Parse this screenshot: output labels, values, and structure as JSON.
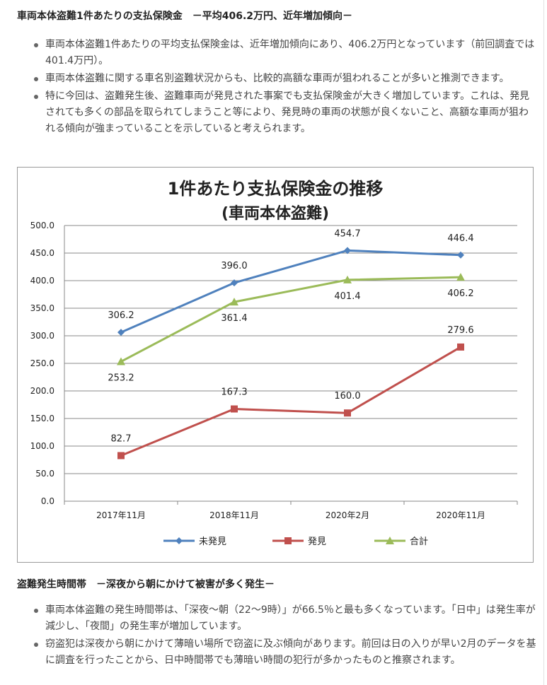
{
  "section1": {
    "heading": "車両本体盗難1件あたりの支払保険金　－平均406.2万円、近年増加傾向－",
    "bullets": [
      "車両本体盗難1件あたりの平均支払保険金は、近年増加傾向にあり、406.2万円となっています（前回調査では401.4万円）。",
      "車両本体盗難に関する車名別盗難状況からも、比較的高額な車両が狙われることが多いと推測できます。",
      "特に今回は、盗難発生後、盗難車両が発見された事案でも支払保険金が大きく増加しています。これは、発見されても多くの部品を取られてしまうこと等により、発見時の車両の状態が良くないこと、高額な車両が狙われる傾向が強まっていることを示していると考えられます。"
    ]
  },
  "chart_data": {
    "type": "line",
    "title": "1件あたり支払保険金の推移",
    "subtitle": "(車両本体盗難)",
    "categories": [
      "2017年11月",
      "2018年11月",
      "2020年2月",
      "2020年11月"
    ],
    "yticks": [
      "0.0",
      "50.0",
      "100.0",
      "150.0",
      "200.0",
      "250.0",
      "300.0",
      "350.0",
      "400.0",
      "450.0",
      "500.0"
    ],
    "ylim": [
      0,
      500
    ],
    "grid": true,
    "legend_position": "bottom",
    "series": [
      {
        "name": "未発見",
        "color": "#4f81bd",
        "marker": "diamond",
        "values": [
          306.2,
          396.0,
          454.7,
          446.4
        ],
        "labels": [
          "306.2",
          "396.0",
          "454.7",
          "446.4"
        ],
        "label_pos": [
          "above",
          "above",
          "above",
          "above"
        ]
      },
      {
        "name": "発見",
        "color": "#c0504d",
        "marker": "square",
        "values": [
          82.7,
          167.3,
          160.0,
          279.6
        ],
        "labels": [
          "82.7",
          "167.3",
          "160.0",
          "279.6"
        ],
        "label_pos": [
          "above",
          "above",
          "above",
          "above"
        ]
      },
      {
        "name": "合計",
        "color": "#9bbb59",
        "marker": "triangle",
        "values": [
          253.2,
          361.4,
          401.4,
          406.2
        ],
        "labels": [
          "253.2",
          "361.4",
          "401.4",
          "406.2"
        ],
        "label_pos": [
          "below",
          "below",
          "below",
          "below"
        ]
      }
    ]
  },
  "section2": {
    "heading": "盗難発生時間帯　－深夜から朝にかけて被害が多く発生－",
    "bullets": [
      "車両本体盗難の発生時間帯は、「深夜～朝（22～9時）」が66.5％と最も多くなっています。「日中」は発生率が減少し、「夜間」の発生率が増加しています。",
      "窃盗犯は深夜から朝にかけて薄暗い場所で窃盗に及ぶ傾向があります。前回は日の入りが早い2月のデータを基に調査を行ったことから、日中時間帯でも薄暗い時間の犯行が多かったものと推察されます。"
    ]
  }
}
